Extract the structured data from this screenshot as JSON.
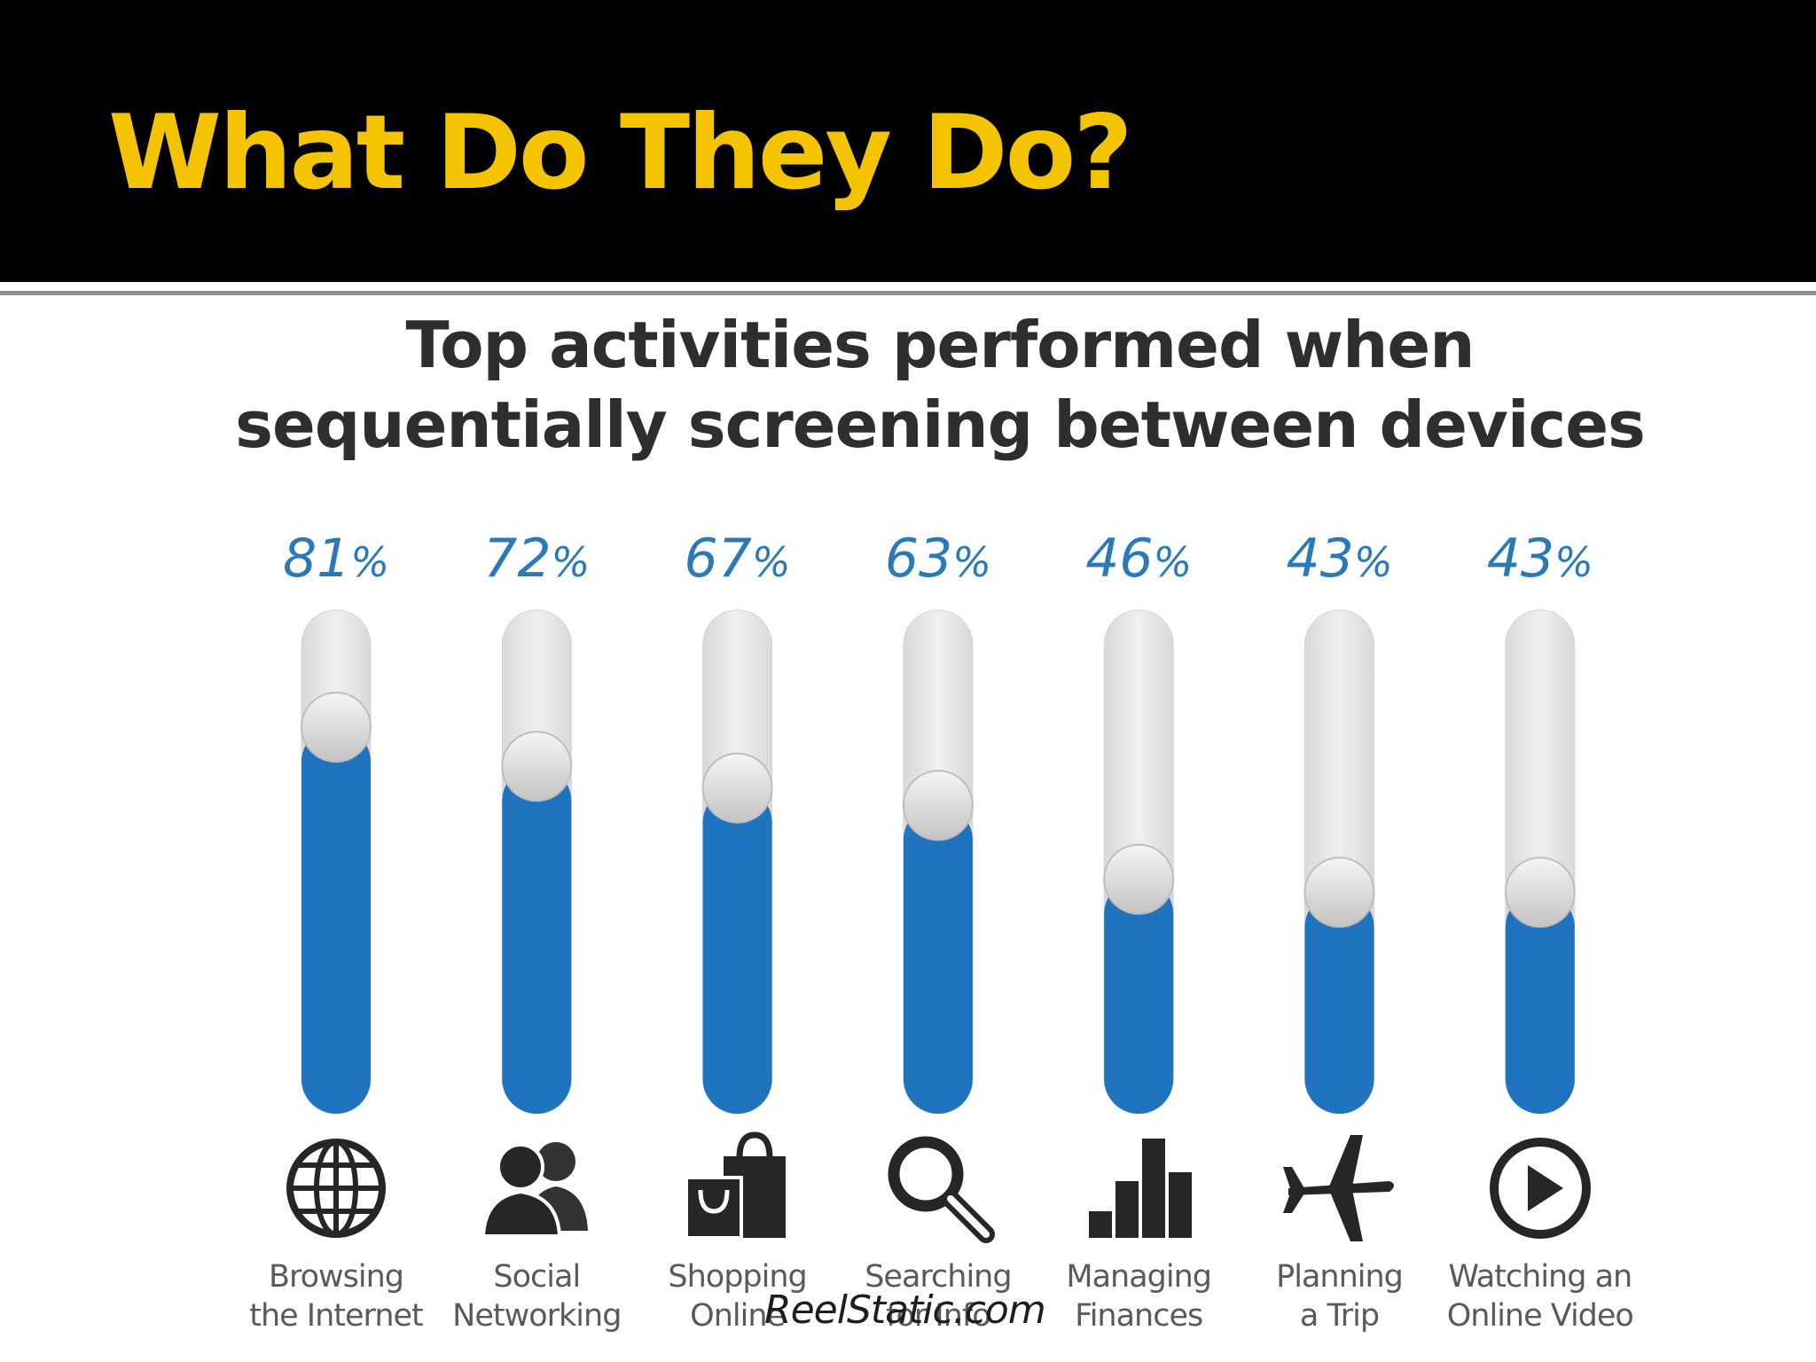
{
  "header": {
    "title": "What Do They Do?"
  },
  "colors": {
    "header_bg": "#000000",
    "title": "#f5c400",
    "bar_fill": "#1f73bf",
    "track": "#e8e8e8",
    "value_text": "#2a79b8"
  },
  "watermark": "ReelStatic.com",
  "chart_data": {
    "type": "bar",
    "orientation": "vertical",
    "title_lines": [
      "Top activities performed when",
      "sequentially screening between devices"
    ],
    "categories": [
      [
        "Browsing",
        "the Internet"
      ],
      [
        "Social",
        "Networking"
      ],
      [
        "Shopping",
        "Online"
      ],
      [
        "Searching",
        "for Info"
      ],
      [
        "Managing",
        "Finances"
      ],
      [
        "Planning",
        "a Trip"
      ],
      [
        "Watching an",
        "Online Video"
      ]
    ],
    "values": [
      81,
      72,
      67,
      63,
      46,
      43,
      43
    ],
    "value_labels": [
      "81",
      "72",
      "67",
      "63",
      "46",
      "43",
      "43"
    ],
    "unit": "%",
    "ylim": [
      0,
      100
    ],
    "icons": [
      "globe-icon",
      "people-icon",
      "shopping-bags-icon",
      "magnifier-icon",
      "bar-chart-icon",
      "airplane-icon",
      "play-icon"
    ],
    "grid": false,
    "legend": "none"
  }
}
